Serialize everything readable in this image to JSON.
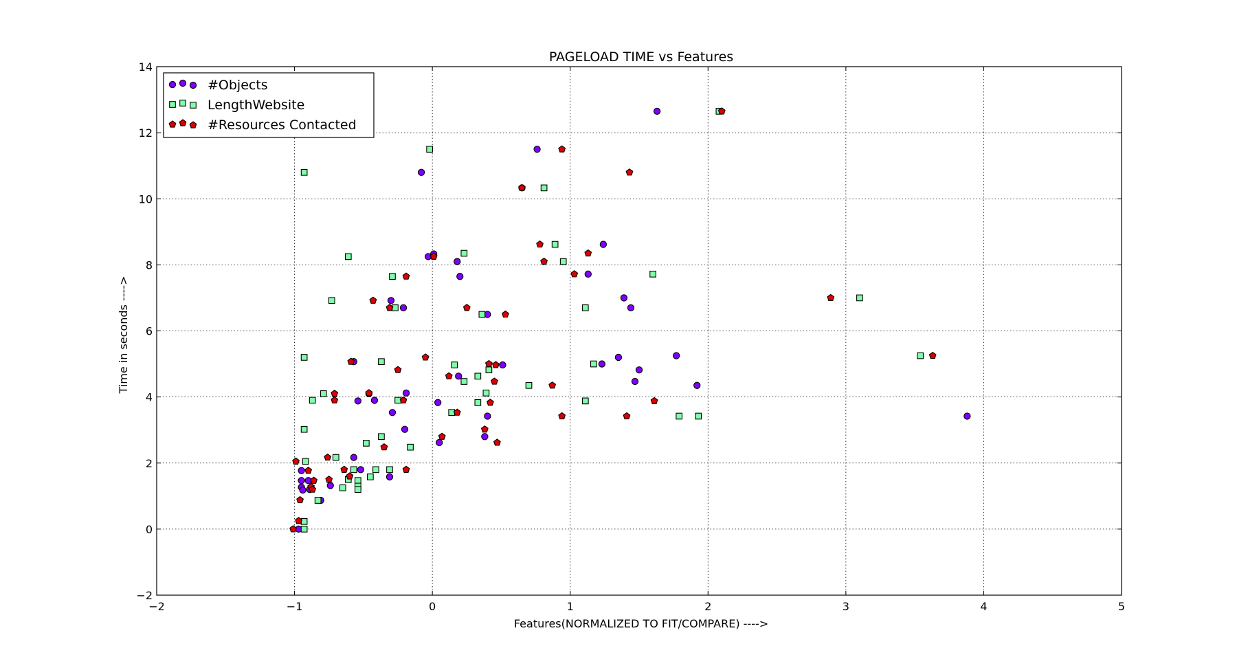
{
  "chart_data": {
    "type": "scatter",
    "title": "PAGELOAD TIME vs Features",
    "xlabel": "Features(NORMALIZED TO FIT/COMPARE) ---->",
    "ylabel": "Time in seconds ---->",
    "xlim": [
      -2,
      5
    ],
    "ylim": [
      -2,
      14
    ],
    "xticks": [
      -2,
      -1,
      0,
      1,
      2,
      3,
      4,
      5
    ],
    "yticks": [
      -2,
      0,
      2,
      4,
      6,
      8,
      10,
      12,
      14
    ],
    "xtick_labels": [
      "−2",
      "−1",
      "0",
      "1",
      "2",
      "3",
      "4",
      "5"
    ],
    "ytick_labels": [
      "−2",
      "0",
      "2",
      "4",
      "6",
      "8",
      "10",
      "12",
      "14"
    ],
    "grid": true,
    "legend_position": "top-left",
    "series": [
      {
        "name": "#Objects",
        "marker": "circle",
        "color": "#7f00ff",
        "points": [
          [
            1.63,
            12.65
          ],
          [
            0.76,
            11.5
          ],
          [
            -0.08,
            10.8
          ],
          [
            0.65,
            10.33
          ],
          [
            1.24,
            8.62
          ],
          [
            0.01,
            8.33
          ],
          [
            -0.03,
            8.25
          ],
          [
            0.18,
            8.1
          ],
          [
            0.2,
            7.65
          ],
          [
            1.13,
            7.72
          ],
          [
            1.39,
            7.0
          ],
          [
            1.44,
            6.7
          ],
          [
            -0.3,
            6.92
          ],
          [
            -0.21,
            6.7
          ],
          [
            0.4,
            6.5
          ],
          [
            1.77,
            5.25
          ],
          [
            1.35,
            5.2
          ],
          [
            -0.57,
            5.07
          ],
          [
            1.23,
            5.0
          ],
          [
            0.51,
            4.97
          ],
          [
            1.5,
            4.82
          ],
          [
            0.19,
            4.63
          ],
          [
            1.47,
            4.47
          ],
          [
            1.92,
            4.35
          ],
          [
            -0.46,
            4.1
          ],
          [
            -0.19,
            4.12
          ],
          [
            -0.42,
            3.9
          ],
          [
            -0.54,
            3.88
          ],
          [
            0.04,
            3.83
          ],
          [
            -0.29,
            3.53
          ],
          [
            0.4,
            3.42
          ],
          [
            3.88,
            3.42
          ],
          [
            -0.2,
            3.02
          ],
          [
            0.38,
            2.8
          ],
          [
            0.05,
            2.62
          ],
          [
            -0.57,
            2.17
          ],
          [
            -0.52,
            1.8
          ],
          [
            -0.31,
            1.58
          ],
          [
            -0.95,
            1.77
          ],
          [
            -0.95,
            1.47
          ],
          [
            -0.9,
            1.47
          ],
          [
            -0.95,
            1.27
          ],
          [
            -0.94,
            1.18
          ],
          [
            -0.89,
            1.2
          ],
          [
            -0.74,
            1.32
          ],
          [
            -0.81,
            0.87
          ],
          [
            -0.97,
            0.0
          ]
        ]
      },
      {
        "name": "LengthWebsite",
        "marker": "square",
        "color": "#7fffaa",
        "points": [
          [
            2.08,
            12.65
          ],
          [
            -0.02,
            11.5
          ],
          [
            -0.93,
            10.8
          ],
          [
            0.81,
            10.33
          ],
          [
            0.89,
            8.62
          ],
          [
            0.23,
            8.35
          ],
          [
            -0.61,
            8.25
          ],
          [
            0.95,
            8.1
          ],
          [
            1.6,
            7.72
          ],
          [
            -0.29,
            7.65
          ],
          [
            3.1,
            7.0
          ],
          [
            -0.73,
            6.92
          ],
          [
            -0.27,
            6.7
          ],
          [
            1.11,
            6.7
          ],
          [
            0.36,
            6.5
          ],
          [
            3.54,
            5.25
          ],
          [
            -0.93,
            5.2
          ],
          [
            -0.37,
            5.07
          ],
          [
            1.17,
            5.0
          ],
          [
            0.16,
            4.97
          ],
          [
            0.41,
            4.82
          ],
          [
            0.33,
            4.63
          ],
          [
            0.23,
            4.47
          ],
          [
            0.7,
            4.35
          ],
          [
            0.39,
            4.12
          ],
          [
            -0.79,
            4.1
          ],
          [
            -0.87,
            3.9
          ],
          [
            -0.25,
            3.9
          ],
          [
            1.11,
            3.88
          ],
          [
            0.33,
            3.83
          ],
          [
            0.14,
            3.53
          ],
          [
            1.79,
            3.42
          ],
          [
            1.93,
            3.42
          ],
          [
            -0.93,
            3.02
          ],
          [
            -0.37,
            2.8
          ],
          [
            -0.48,
            2.6
          ],
          [
            -0.16,
            2.48
          ],
          [
            -0.7,
            2.17
          ],
          [
            -0.92,
            2.05
          ],
          [
            -0.57,
            1.8
          ],
          [
            -0.41,
            1.8
          ],
          [
            -0.31,
            1.8
          ],
          [
            -0.61,
            1.5
          ],
          [
            -0.45,
            1.58
          ],
          [
            -0.54,
            1.47
          ],
          [
            -0.54,
            1.3
          ],
          [
            -0.54,
            1.2
          ],
          [
            -0.65,
            1.25
          ],
          [
            -0.83,
            0.87
          ],
          [
            -0.93,
            0.23
          ],
          [
            -0.93,
            0.0
          ]
        ]
      },
      {
        "name": "#Resources Contacted",
        "marker": "pentagon",
        "color": "#dd0000",
        "points": [
          [
            2.1,
            12.65
          ],
          [
            0.94,
            11.5
          ],
          [
            1.43,
            10.8
          ],
          [
            0.65,
            10.33
          ],
          [
            0.78,
            8.62
          ],
          [
            1.13,
            8.35
          ],
          [
            0.01,
            8.25
          ],
          [
            0.81,
            8.1
          ],
          [
            1.03,
            7.72
          ],
          [
            -0.19,
            7.65
          ],
          [
            2.89,
            7.0
          ],
          [
            -0.43,
            6.92
          ],
          [
            -0.31,
            6.7
          ],
          [
            0.25,
            6.7
          ],
          [
            0.53,
            6.5
          ],
          [
            3.63,
            5.25
          ],
          [
            -0.05,
            5.2
          ],
          [
            -0.59,
            5.07
          ],
          [
            0.41,
            5.0
          ],
          [
            0.46,
            4.97
          ],
          [
            -0.25,
            4.82
          ],
          [
            0.12,
            4.63
          ],
          [
            0.45,
            4.47
          ],
          [
            0.87,
            4.35
          ],
          [
            -0.46,
            4.12
          ],
          [
            -0.71,
            4.1
          ],
          [
            -0.71,
            3.9
          ],
          [
            -0.21,
            3.9
          ],
          [
            1.61,
            3.88
          ],
          [
            0.42,
            3.83
          ],
          [
            0.18,
            3.53
          ],
          [
            0.94,
            3.42
          ],
          [
            1.41,
            3.42
          ],
          [
            0.38,
            3.02
          ],
          [
            0.07,
            2.8
          ],
          [
            0.47,
            2.62
          ],
          [
            -0.35,
            2.48
          ],
          [
            -0.76,
            2.17
          ],
          [
            -0.99,
            2.05
          ],
          [
            -0.9,
            1.77
          ],
          [
            -0.64,
            1.8
          ],
          [
            -0.19,
            1.8
          ],
          [
            -0.6,
            1.6
          ],
          [
            -0.75,
            1.5
          ],
          [
            -0.86,
            1.47
          ],
          [
            -0.88,
            1.28
          ],
          [
            -0.87,
            1.2
          ],
          [
            -0.96,
            0.88
          ],
          [
            -0.97,
            0.25
          ],
          [
            -1.01,
            0.0
          ]
        ]
      }
    ]
  }
}
